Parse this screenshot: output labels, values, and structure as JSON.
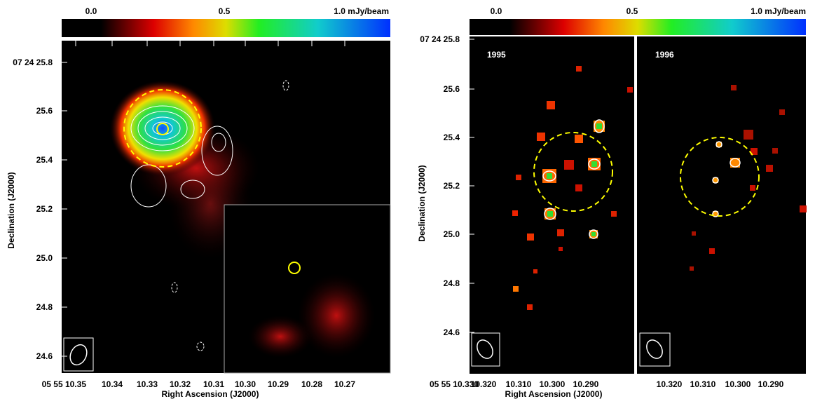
{
  "left": {
    "colorbar": {
      "labels": [
        "0.0",
        "0.5",
        "1.0 mJy/beam"
      ]
    },
    "yticks": [
      "07 24 25.8",
      "25.6",
      "25.4",
      "25.2",
      "25.0",
      "24.8",
      "24.6"
    ],
    "xticks": [
      "05 55 10.35",
      "10.34",
      "10.33",
      "10.32",
      "10.31",
      "10.30",
      "10.29",
      "10.28",
      "10.27"
    ],
    "xlabel": "Right Ascension (J2000)",
    "ylabel": "Declination (J2000)"
  },
  "right": {
    "colorbar": {
      "labels": [
        "0.0",
        "0.5",
        "1.0 mJy/beam"
      ]
    },
    "yticks": [
      "07 24 25.8",
      "25.6",
      "25.4",
      "25.2",
      "25.0",
      "24.8",
      "24.6"
    ],
    "xticks": [
      "05 55 10.330",
      "10.320",
      "10.310",
      "10.300",
      "10.290",
      "10.320",
      "10.310",
      "10.300",
      "10.290"
    ],
    "xlabel": "Right Ascension (J2000)",
    "ylabel": "Declination (J2000)",
    "panels": [
      "1995",
      "1996"
    ]
  }
}
